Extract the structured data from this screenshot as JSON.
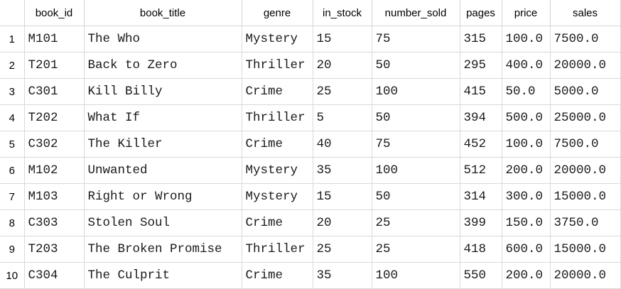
{
  "columns": [
    "book_id",
    "book_title",
    "genre",
    "in_stock",
    "number_sold",
    "pages",
    "price",
    "sales"
  ],
  "rows": [
    {
      "n": "1",
      "cells": [
        "M101",
        "The Who",
        "Mystery",
        "15",
        "75",
        "315",
        "100.0",
        "7500.0"
      ]
    },
    {
      "n": "2",
      "cells": [
        "T201",
        "Back to Zero",
        "Thriller",
        "20",
        "50",
        "295",
        "400.0",
        "20000.0"
      ]
    },
    {
      "n": "3",
      "cells": [
        "C301",
        "Kill Billy",
        "Crime",
        "25",
        "100",
        "415",
        "50.0",
        "5000.0"
      ]
    },
    {
      "n": "4",
      "cells": [
        "T202",
        "What If",
        "Thriller",
        "5",
        "50",
        "394",
        "500.0",
        "25000.0"
      ]
    },
    {
      "n": "5",
      "cells": [
        "C302",
        "The Killer",
        "Crime",
        "40",
        "75",
        "452",
        "100.0",
        "7500.0"
      ]
    },
    {
      "n": "6",
      "cells": [
        "M102",
        "Unwanted",
        "Mystery",
        "35",
        "100",
        "512",
        "200.0",
        "20000.0"
      ]
    },
    {
      "n": "7",
      "cells": [
        "M103",
        "Right or Wrong",
        "Mystery",
        "15",
        "50",
        "314",
        "300.0",
        "15000.0"
      ]
    },
    {
      "n": "8",
      "cells": [
        "C303",
        "Stolen Soul",
        "Crime",
        "20",
        "25",
        "399",
        "150.0",
        "3750.0"
      ]
    },
    {
      "n": "9",
      "cells": [
        "T203",
        "The Broken Promise",
        "Thriller",
        "25",
        "25",
        "418",
        "600.0",
        "15000.0"
      ]
    },
    {
      "n": "10",
      "cells": [
        "C304",
        "The Culprit",
        "Crime",
        "35",
        "100",
        "550",
        "200.0",
        "20000.0"
      ]
    }
  ]
}
